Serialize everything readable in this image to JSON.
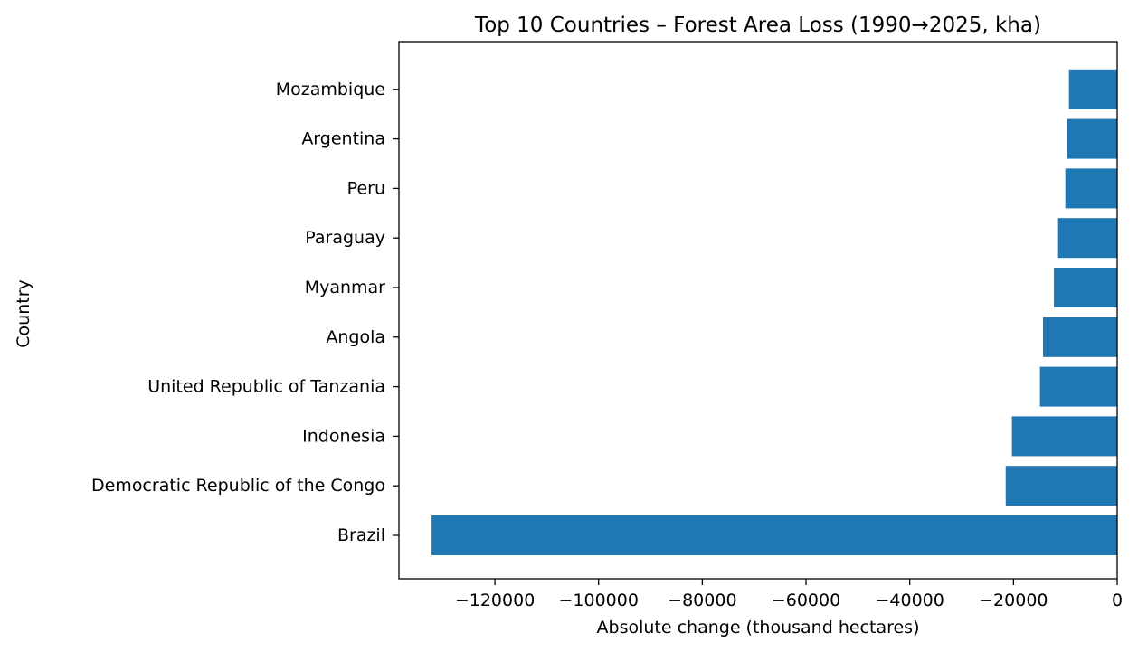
{
  "chart_data": {
    "type": "bar",
    "orientation": "horizontal",
    "title": "Top 10 Countries – Forest Area Loss (1990→2025, kha)",
    "xlabel": "Absolute change (thousand hectares)",
    "ylabel": "Country",
    "categories": [
      "Brazil",
      "Democratic Republic of the Congo",
      "Indonesia",
      "United Republic of Tanzania",
      "Angola",
      "Myanmar",
      "Paraguay",
      "Peru",
      "Argentina",
      "Mozambique"
    ],
    "values": [
      -132200,
      -21500,
      -20300,
      -14900,
      -14300,
      -12200,
      -11400,
      -10000,
      -9600,
      -9300
    ],
    "xlim": [
      -138500,
      0
    ],
    "xticks": [
      -120000,
      -100000,
      -80000,
      -60000,
      -40000,
      -20000,
      0
    ],
    "xtick_labels": [
      "−120000",
      "−100000",
      "−80000",
      "−60000",
      "−40000",
      "−20000",
      "0"
    ],
    "bar_color": "#1f77b4",
    "grid": false,
    "legend": "none"
  }
}
